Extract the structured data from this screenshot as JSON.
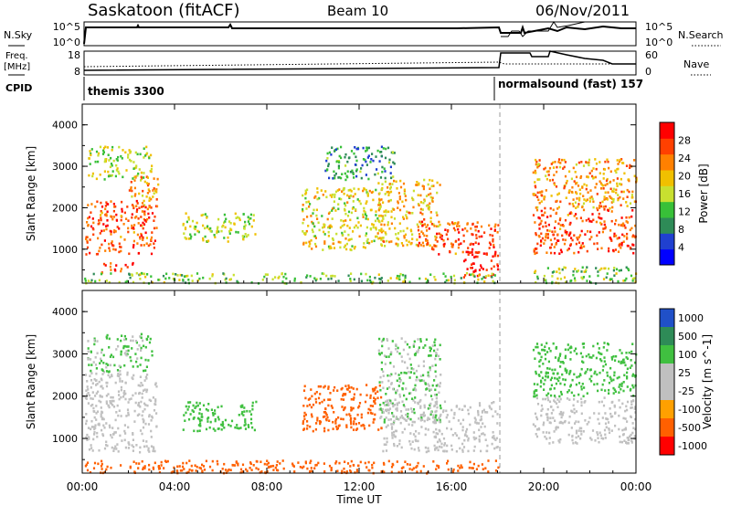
{
  "header": {
    "radar": "Saskatoon (fitACF)",
    "beam": "Beam 10",
    "date": "06/Nov/2011"
  },
  "sky_panel": {
    "left_label": "N.Sky",
    "right_label": "N.Search",
    "left_ticks": [
      "10^5",
      "10^0"
    ],
    "right_ticks": [
      "10^5",
      "10^0"
    ]
  },
  "freq_panel": {
    "left_label_1": "Freq.",
    "left_label_2": "[MHz]",
    "right_label": "Nave",
    "left_ticks": [
      "18",
      "8"
    ],
    "right_ticks": [
      "60",
      "0"
    ]
  },
  "cpid": {
    "label": "CPID",
    "segments": [
      {
        "text": "themis 3300",
        "start_hour": 0
      },
      {
        "text": "normalsound (fast) 157",
        "start_hour": 18
      }
    ],
    "change_hour": 18.1
  },
  "colors": {
    "power": [
      "#0000ff",
      "#2040d0",
      "#2e8b57",
      "#38c038",
      "#c8e030",
      "#f0c000",
      "#ff8000",
      "#ff4000",
      "#ff0000"
    ],
    "velocity": [
      "#2050c8",
      "#2e8b57",
      "#40c040",
      "#c0c0c0",
      "#c0c0c0",
      "#ffa000",
      "#ff6000",
      "#ff0000"
    ],
    "ground_scatter": "#c0c0c0"
  },
  "chart_data": [
    {
      "type": "heatmap",
      "name": "power",
      "xlabel": "Time UT",
      "ylabel": "Slant Range [km]",
      "colorbar_label": "Power [dB]",
      "colorbar_ticks": [
        "28",
        "24",
        "20",
        "16",
        "12",
        "8",
        "4"
      ],
      "xlim": [
        0,
        24
      ],
      "ylim": [
        180,
        4500
      ],
      "yticks": [
        "1000",
        "2000",
        "3000",
        "4000"
      ],
      "regions": [
        {
          "t0": 0.1,
          "t1": 3.2,
          "r0": 900,
          "r1": 2200,
          "value": 24
        },
        {
          "t0": 0.8,
          "t1": 2.2,
          "r0": 450,
          "r1": 700,
          "value": 26
        },
        {
          "t0": 2.0,
          "t1": 3.3,
          "r0": 2000,
          "r1": 2800,
          "value": 20
        },
        {
          "t0": 0.2,
          "t1": 3.0,
          "r0": 2700,
          "r1": 3500,
          "value": 14
        },
        {
          "t0": 4.3,
          "t1": 7.5,
          "r0": 1200,
          "r1": 1900,
          "value": 14
        },
        {
          "t0": 9.5,
          "t1": 13.0,
          "r0": 1000,
          "r1": 2500,
          "value": 16
        },
        {
          "t0": 10.5,
          "t1": 13.5,
          "r0": 2700,
          "r1": 3500,
          "value": 8
        },
        {
          "t0": 12.8,
          "t1": 15.5,
          "r0": 1100,
          "r1": 2700,
          "value": 18
        },
        {
          "t0": 14.5,
          "t1": 18.0,
          "r0": 900,
          "r1": 1700,
          "value": 24
        },
        {
          "t0": 16.5,
          "t1": 18.0,
          "r0": 300,
          "r1": 1000,
          "value": 28
        },
        {
          "t0": 0.0,
          "t1": 18.0,
          "r0": 200,
          "r1": 450,
          "value": 12
        },
        {
          "t0": 19.5,
          "t1": 24.0,
          "r0": 900,
          "r1": 2000,
          "value": 24
        },
        {
          "t0": 19.5,
          "t1": 24.0,
          "r0": 2000,
          "r1": 3200,
          "value": 20
        },
        {
          "t0": 19.5,
          "t1": 24.0,
          "r0": 200,
          "r1": 600,
          "value": 12
        }
      ]
    },
    {
      "type": "heatmap",
      "name": "velocity",
      "xlabel": "Time UT",
      "ylabel": "Slant Range [km]",
      "colorbar_label": "Velocity [m s^-1]",
      "colorbar_ticks": [
        "1000",
        "500",
        "100",
        "25",
        "-25",
        "-100",
        "-500",
        "-1000"
      ],
      "xlim": [
        0,
        24
      ],
      "ylim": [
        180,
        4500
      ],
      "yticks": [
        "1000",
        "2000",
        "3000",
        "4000"
      ],
      "xticks": [
        "00:00",
        "04:00",
        "08:00",
        "12:00",
        "16:00",
        "20:00",
        "00:00"
      ],
      "regions": [
        {
          "t0": 0.1,
          "t1": 3.2,
          "r0": 700,
          "r1": 2600,
          "value": 0
        },
        {
          "t0": 0.2,
          "t1": 3.0,
          "r0": 2600,
          "r1": 3500,
          "value": 120
        },
        {
          "t0": 4.3,
          "t1": 7.5,
          "r0": 1200,
          "r1": 1900,
          "value": 300
        },
        {
          "t0": 9.5,
          "t1": 13.0,
          "r0": 1200,
          "r1": 2300,
          "value": -200
        },
        {
          "t0": 12.8,
          "t1": 15.5,
          "r0": 1400,
          "r1": 3400,
          "value": 100
        },
        {
          "t0": 13.0,
          "t1": 18.0,
          "r0": 700,
          "r1": 1900,
          "value": 0
        },
        {
          "t0": 0.0,
          "t1": 18.0,
          "r0": 200,
          "r1": 500,
          "value": -200
        },
        {
          "t0": 19.5,
          "t1": 24.0,
          "r0": 900,
          "r1": 2000,
          "value": 0
        },
        {
          "t0": 19.5,
          "t1": 24.0,
          "r0": 2000,
          "r1": 3300,
          "value": 300
        }
      ]
    }
  ]
}
